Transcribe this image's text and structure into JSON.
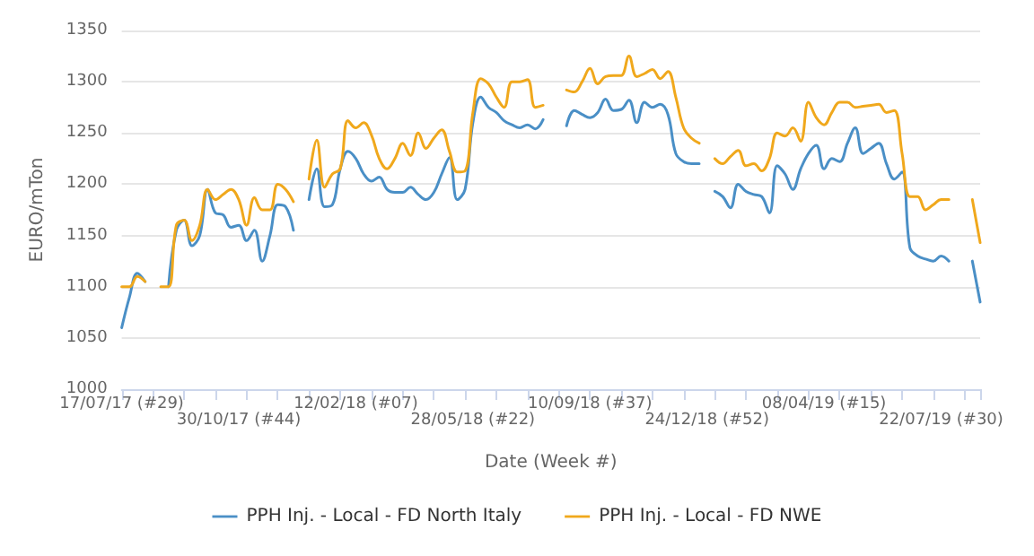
{
  "chart_data": {
    "type": "line",
    "xlabel": "Date (Week #)",
    "ylabel": "EURO/mTon",
    "categories": [
      "17/07/17 (#29)",
      null,
      null,
      null,
      null,
      null,
      null,
      null,
      null,
      null,
      null,
      null,
      null,
      null,
      null,
      "30/10/17 (#44)",
      null,
      null,
      null,
      null,
      null,
      null,
      null,
      null,
      null,
      null,
      null,
      null,
      null,
      null,
      "12/02/18 (#07)",
      null,
      null,
      null,
      null,
      null,
      null,
      null,
      null,
      null,
      null,
      null,
      null,
      null,
      null,
      "28/05/18 (#22)",
      null,
      null,
      null,
      null,
      null,
      null,
      null,
      null,
      null,
      null,
      null,
      null,
      null,
      null,
      "10/09/18 (#37)",
      null,
      null,
      null,
      null,
      null,
      null,
      null,
      null,
      null,
      null,
      null,
      null,
      null,
      null,
      "24/12/18 (#52)",
      null,
      null,
      null,
      null,
      null,
      null,
      null,
      null,
      null,
      null,
      null,
      null,
      null,
      null,
      "08/04/19 (#15)",
      null,
      null,
      null,
      null,
      null,
      null,
      null,
      null,
      null,
      null,
      null,
      null,
      null,
      null,
      "22/07/19 (#30)",
      null,
      null,
      null,
      null,
      null
    ],
    "series": [
      {
        "name": "PPH Inj. - Local - FD North Italy",
        "color": "#4a8fc6",
        "values": [
          1060,
          1090,
          1113,
          1105,
          null,
          null,
          1100,
          1155,
          1165,
          1140,
          1150,
          1195,
          1172,
          1170,
          1158,
          1160,
          1145,
          1155,
          1125,
          1150,
          1180,
          1178,
          1155,
          null,
          1185,
          1215,
          1178,
          1180,
          1215,
          1232,
          1225,
          1210,
          1203,
          1207,
          1195,
          1192,
          1192,
          1197,
          1190,
          1185,
          1192,
          1210,
          1226,
          1185,
          1195,
          1260,
          1285,
          1275,
          1270,
          1262,
          1258,
          1255,
          1258,
          1254,
          1263,
          null,
          null,
          1257,
          1272,
          1268,
          1265,
          1270,
          1283,
          1272,
          1273,
          1282,
          1260,
          1280,
          1275,
          1278,
          1268,
          1230,
          1222,
          1220,
          1220,
          null,
          1193,
          1188,
          1177,
          1200,
          1193,
          1190,
          1188,
          1172,
          1218,
          1210,
          1195,
          1215,
          1230,
          1238,
          1215,
          1225,
          1222,
          1240,
          1255,
          1230,
          1235,
          1240,
          1220,
          1205,
          1212,
          1138,
          1130,
          1127,
          1125,
          1130,
          1125,
          null,
          null,
          1125,
          1085
        ]
      },
      {
        "name": "PPH Inj. - Local - FD NWE",
        "color": "#f0a81c",
        "values": [
          1100,
          1100,
          1110,
          1105,
          null,
          1100,
          1100,
          1160,
          1165,
          1145,
          1160,
          1195,
          1185,
          1190,
          1195,
          1185,
          1160,
          1187,
          1175,
          1175,
          1200,
          1195,
          1183,
          null,
          1205,
          1243,
          1197,
          1210,
          1215,
          1262,
          1255,
          1260,
          1248,
          1225,
          1215,
          1225,
          1240,
          1228,
          1250,
          1235,
          1245,
          1253,
          1232,
          1212,
          1213,
          1270,
          1303,
          1298,
          1285,
          1275,
          1300,
          1300,
          1302,
          1275,
          1277,
          null,
          null,
          1292,
          1290,
          1300,
          1313,
          1298,
          1305,
          1306,
          1306,
          1325,
          1305,
          1308,
          1312,
          1303,
          1310,
          1285,
          1255,
          1245,
          1240,
          null,
          1225,
          1220,
          1227,
          1233,
          1218,
          1220,
          1213,
          1225,
          1250,
          1247,
          1255,
          1242,
          1280,
          1265,
          1258,
          1270,
          1280,
          1280,
          1275,
          1276,
          1277,
          1278,
          1270,
          1272,
          1230,
          1188,
          1188,
          1175,
          1180,
          1185,
          1185,
          null,
          null,
          1185,
          1143
        ]
      }
    ],
    "ylim": [
      1000,
      1350
    ],
    "yticks": [
      1000,
      1050,
      1100,
      1150,
      1200,
      1250,
      1300,
      1350
    ],
    "grid": "y",
    "legend": "bottom",
    "marker": "none",
    "line_style": "solid"
  }
}
